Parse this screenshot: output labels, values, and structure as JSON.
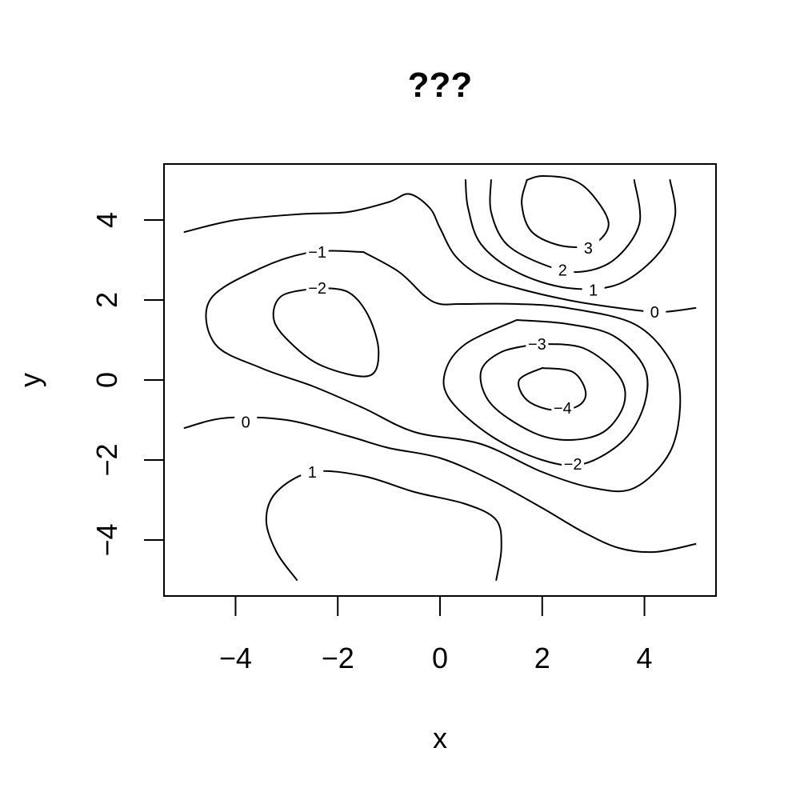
{
  "chart_data": {
    "type": "contour",
    "title": "???",
    "xlabel": "x",
    "ylabel": "y",
    "xlim": [
      -5.4,
      5.4
    ],
    "ylim": [
      -5.4,
      5.4
    ],
    "x_ticks": [
      -4,
      -2,
      0,
      2,
      4
    ],
    "y_ticks": [
      -4,
      -2,
      0,
      2,
      4
    ],
    "x_tick_labels": [
      "−4",
      "−2",
      "0",
      "2",
      "4"
    ],
    "y_tick_labels": [
      "−4",
      "−2",
      "0",
      "2",
      "4"
    ],
    "grid": false,
    "contours": [
      {
        "level": 0,
        "label": "0",
        "label_at": [
          4.2,
          1.7
        ],
        "points": [
          [
            -5,
            3.7
          ],
          [
            -4,
            4.0
          ],
          [
            -2.7,
            4.15
          ],
          [
            -1.8,
            4.2
          ],
          [
            -1.0,
            4.45
          ],
          [
            -0.6,
            4.65
          ],
          [
            -0.2,
            4.3
          ],
          [
            0.0,
            3.8
          ],
          [
            0.3,
            3.1
          ],
          [
            0.8,
            2.6
          ],
          [
            1.5,
            2.3
          ],
          [
            2.5,
            2.0
          ],
          [
            3.5,
            1.8
          ],
          [
            4.3,
            1.7
          ],
          [
            5,
            1.8
          ]
        ]
      },
      {
        "level": 0,
        "label": "0",
        "label_at": [
          -3.8,
          -1.05
        ],
        "points": [
          [
            -5,
            -1.2
          ],
          [
            -4.2,
            -0.95
          ],
          [
            -3.0,
            -1.0
          ],
          [
            -1.8,
            -1.4
          ],
          [
            -1.0,
            -1.7
          ],
          [
            0.0,
            -1.95
          ],
          [
            1.0,
            -2.5
          ],
          [
            2.0,
            -3.2
          ],
          [
            2.8,
            -3.8
          ],
          [
            3.5,
            -4.2
          ],
          [
            4.2,
            -4.3
          ],
          [
            5,
            -4.1
          ]
        ]
      },
      {
        "level": 1,
        "label": "1",
        "label_at": [
          3.0,
          2.25
        ],
        "points": [
          [
            0.5,
            5.0
          ],
          [
            0.55,
            4.3
          ],
          [
            0.8,
            3.4
          ],
          [
            1.5,
            2.7
          ],
          [
            2.5,
            2.3
          ],
          [
            3.5,
            2.4
          ],
          [
            4.3,
            3.2
          ],
          [
            4.6,
            4.1
          ],
          [
            4.5,
            5.0
          ]
        ]
      },
      {
        "level": 1,
        "label": "1",
        "label_at": [
          -2.5,
          -2.3
        ],
        "points": [
          [
            -2.8,
            -5.0
          ],
          [
            -3.2,
            -4.3
          ],
          [
            -3.4,
            -3.5
          ],
          [
            -3.2,
            -2.8
          ],
          [
            -2.5,
            -2.3
          ],
          [
            -1.5,
            -2.4
          ],
          [
            -0.5,
            -2.8
          ],
          [
            0.5,
            -3.1
          ],
          [
            1.1,
            -3.5
          ],
          [
            1.2,
            -4.2
          ],
          [
            1.1,
            -5.0
          ]
        ]
      },
      {
        "level": 2,
        "label": "2",
        "label_at": [
          2.4,
          2.75
        ],
        "points": [
          [
            1.0,
            5.0
          ],
          [
            1.0,
            4.2
          ],
          [
            1.3,
            3.4
          ],
          [
            2.0,
            2.9
          ],
          [
            2.7,
            2.7
          ],
          [
            3.4,
            3.0
          ],
          [
            3.9,
            3.9
          ],
          [
            3.8,
            5.0
          ]
        ]
      },
      {
        "level": 3,
        "label": "3",
        "label_at": [
          2.9,
          3.3
        ],
        "points": [
          [
            1.7,
            5.0
          ],
          [
            1.6,
            4.4
          ],
          [
            1.8,
            3.7
          ],
          [
            2.4,
            3.35
          ],
          [
            3.0,
            3.4
          ],
          [
            3.3,
            3.9
          ],
          [
            3.0,
            4.6
          ],
          [
            2.6,
            5.0
          ],
          [
            2.0,
            5.1
          ],
          [
            1.7,
            5.0
          ]
        ]
      },
      {
        "level": -1,
        "label": "−1",
        "label_at": [
          -2.4,
          3.2
        ],
        "points": [
          [
            -1.5,
            3.2
          ],
          [
            -2.5,
            3.2
          ],
          [
            -3.5,
            2.8
          ],
          [
            -4.5,
            2.0
          ],
          [
            -4.4,
            0.9
          ],
          [
            -3.5,
            0.3
          ],
          [
            -2.5,
            -0.15
          ],
          [
            -1.5,
            -0.7
          ],
          [
            -0.5,
            -1.3
          ],
          [
            0.8,
            -1.6
          ],
          [
            2.0,
            -2.3
          ],
          [
            3.0,
            -2.7
          ],
          [
            3.8,
            -2.7
          ],
          [
            4.5,
            -1.8
          ],
          [
            4.7,
            -0.5
          ],
          [
            4.5,
            0.5
          ],
          [
            3.8,
            1.4
          ],
          [
            2.5,
            1.8
          ],
          [
            1.5,
            1.9
          ],
          [
            0.4,
            1.9
          ],
          [
            0.0,
            1.9
          ],
          [
            -0.3,
            2.1
          ],
          [
            -0.8,
            2.7
          ],
          [
            -1.5,
            3.2
          ]
        ]
      },
      {
        "level": -2,
        "label": "−2",
        "label_at": [
          -2.4,
          2.3
        ],
        "points": [
          [
            -2.4,
            2.3
          ],
          [
            -3.1,
            2.1
          ],
          [
            -3.25,
            1.5
          ],
          [
            -2.9,
            0.9
          ],
          [
            -2.3,
            0.35
          ],
          [
            -1.4,
            0.1
          ],
          [
            -1.2,
            0.7
          ],
          [
            -1.4,
            1.6
          ],
          [
            -1.8,
            2.2
          ],
          [
            -2.4,
            2.3
          ]
        ]
      },
      {
        "level": -2,
        "label": "−2",
        "label_at": [
          2.6,
          -2.1
        ],
        "points": [
          [
            1.5,
            1.5
          ],
          [
            2.5,
            1.4
          ],
          [
            3.4,
            1.1
          ],
          [
            4.0,
            0.3
          ],
          [
            4.0,
            -0.6
          ],
          [
            3.6,
            -1.5
          ],
          [
            2.8,
            -2.1
          ],
          [
            2.0,
            -2.0
          ],
          [
            1.0,
            -1.4
          ],
          [
            0.2,
            -0.5
          ],
          [
            0.1,
            0.2
          ],
          [
            0.5,
            0.9
          ],
          [
            1.5,
            1.5
          ]
        ]
      },
      {
        "level": -3,
        "label": "−3",
        "label_at": [
          1.9,
          0.9
        ],
        "points": [
          [
            1.9,
            0.9
          ],
          [
            2.8,
            0.8
          ],
          [
            3.5,
            0.1
          ],
          [
            3.6,
            -0.6
          ],
          [
            3.2,
            -1.3
          ],
          [
            2.5,
            -1.5
          ],
          [
            1.8,
            -1.3
          ],
          [
            1.0,
            -0.6
          ],
          [
            0.8,
            0.2
          ],
          [
            1.2,
            0.7
          ],
          [
            1.9,
            0.9
          ]
        ]
      },
      {
        "level": -4,
        "label": "−4",
        "label_at": [
          2.4,
          -0.7
        ],
        "points": [
          [
            2.0,
            0.3
          ],
          [
            2.6,
            0.2
          ],
          [
            2.85,
            -0.3
          ],
          [
            2.7,
            -0.65
          ],
          [
            2.2,
            -0.75
          ],
          [
            1.7,
            -0.5
          ],
          [
            1.55,
            0.0
          ],
          [
            2.0,
            0.3
          ]
        ]
      }
    ]
  }
}
